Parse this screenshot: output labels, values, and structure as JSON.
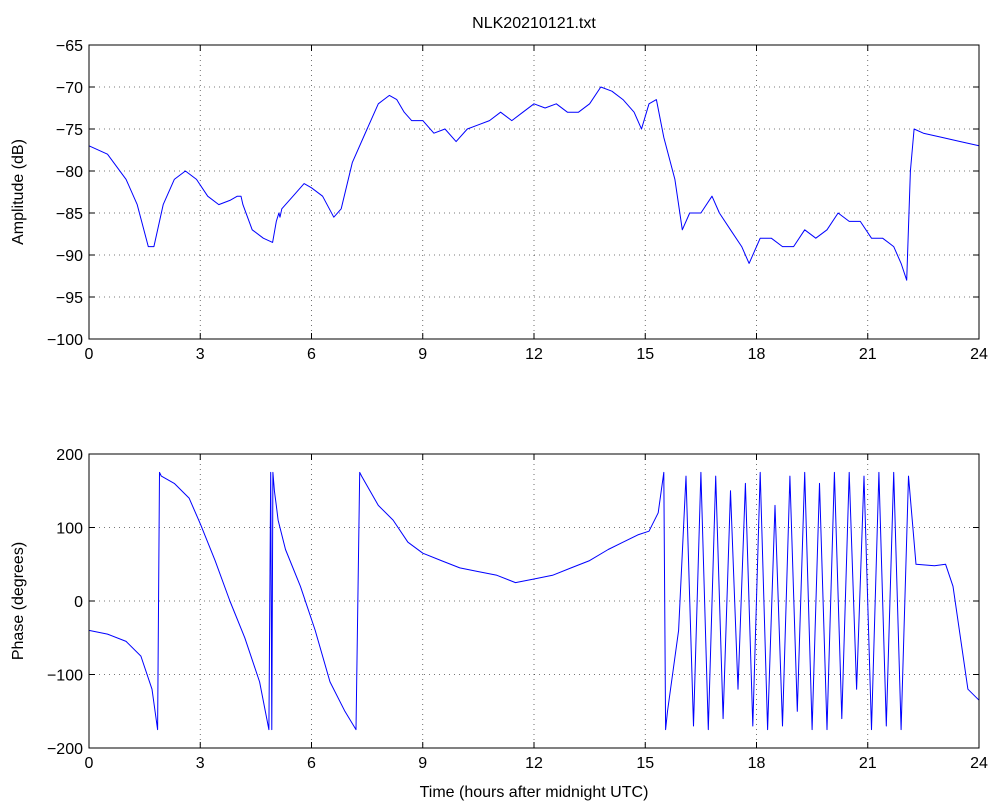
{
  "chart_data": [
    {
      "type": "line",
      "title": "NLK20210121.txt",
      "xlabel": "",
      "ylabel": "Amplitude (dB)",
      "xlim": [
        0,
        24
      ],
      "ylim": [
        -100,
        -65
      ],
      "xticks": [
        0,
        3,
        6,
        9,
        12,
        15,
        18,
        21,
        24
      ],
      "yticks": [
        -65,
        -70,
        -75,
        -80,
        -85,
        -90,
        -95,
        -100
      ],
      "grid": true,
      "series_color": "#0000ff",
      "series": [
        {
          "x": [
            0,
            0.5,
            1.0,
            1.3,
            1.6,
            1.75,
            2.0,
            2.3,
            2.6,
            2.9,
            3.2,
            3.5,
            3.8,
            4.0,
            4.1,
            4.15,
            4.4,
            4.7,
            4.95,
            5.05,
            5.12,
            5.15,
            5.2,
            5.5,
            5.8,
            6.0,
            6.3,
            6.6,
            6.8,
            7.1,
            7.5,
            7.8,
            8.1,
            8.3,
            8.5,
            8.7,
            9.0,
            9.3,
            9.6,
            9.9,
            10.2,
            10.5,
            10.8,
            11.1,
            11.4,
            11.7,
            12.0,
            12.3,
            12.6,
            12.9,
            13.2,
            13.5,
            13.8,
            14.1,
            14.4,
            14.7,
            14.9,
            15.1,
            15.3,
            15.5,
            15.8,
            16.0,
            16.2,
            16.5,
            16.8,
            17.0,
            17.3,
            17.6,
            17.8,
            18.1,
            18.4,
            18.7,
            19.0,
            19.3,
            19.6,
            19.9,
            20.2,
            20.5,
            20.8,
            21.1,
            21.4,
            21.7,
            21.9,
            22.05,
            22.15,
            22.25,
            22.5,
            23.0,
            23.5,
            24.0
          ],
          "y": [
            -77,
            -78,
            -81,
            -84,
            -89,
            -89,
            -84,
            -81,
            -80,
            -81,
            -83,
            -84,
            -83.5,
            -83,
            -83,
            -84,
            -87,
            -88,
            -88.5,
            -86,
            -85,
            -85.5,
            -84.5,
            -83,
            -81.5,
            -82,
            -83,
            -85.5,
            -84.5,
            -79,
            -75,
            -72,
            -71,
            -71.5,
            -73,
            -74,
            -74,
            -75.5,
            -75,
            -76.5,
            -75,
            -74.5,
            -74,
            -73,
            -74,
            -73,
            -72,
            -72.5,
            -72,
            -73,
            -73,
            -72,
            -70,
            -70.5,
            -71.5,
            -73,
            -75,
            -72,
            -71.5,
            -76,
            -81,
            -87,
            -85,
            -85,
            -83,
            -85,
            -87,
            -89,
            -91,
            -88,
            -88,
            -89,
            -89,
            -87,
            -88,
            -87,
            -85,
            -86,
            -86,
            -88,
            -88,
            -89,
            -91,
            -93,
            -80,
            -75,
            -75.5,
            -76,
            -76.5,
            -77
          ]
        }
      ]
    },
    {
      "type": "line",
      "title": "",
      "xlabel": "Time (hours after midnight UTC)",
      "ylabel": "Phase (degrees)",
      "xlim": [
        0,
        24
      ],
      "ylim": [
        -200,
        200
      ],
      "xticks": [
        0,
        3,
        6,
        9,
        12,
        15,
        18,
        21,
        24
      ],
      "yticks": [
        200,
        100,
        0,
        -100,
        -200
      ],
      "grid": true,
      "series_color": "#0000ff",
      "series": [
        {
          "x": [
            0,
            0.5,
            1.0,
            1.4,
            1.7,
            1.85,
            1.9,
            1.95,
            2.3,
            2.7,
            3.0,
            3.4,
            3.8,
            4.2,
            4.6,
            4.85,
            4.9,
            4.93,
            4.96,
            5.0,
            5.05,
            5.1,
            5.3,
            5.7,
            6.1,
            6.5,
            6.9,
            7.2,
            7.3,
            7.35,
            7.8,
            8.2,
            8.6,
            9.0,
            9.5,
            10.0,
            10.5,
            11.0,
            11.5,
            12.0,
            12.5,
            13.0,
            13.5,
            14.0,
            14.4,
            14.8,
            15.1,
            15.35,
            15.5,
            15.55,
            15.6,
            15.9,
            16.1,
            16.3,
            16.5,
            16.7,
            16.9,
            17.1,
            17.3,
            17.5,
            17.7,
            17.9,
            18.1,
            18.3,
            18.5,
            18.7,
            18.9,
            19.1,
            19.3,
            19.5,
            19.7,
            19.9,
            20.1,
            20.3,
            20.5,
            20.7,
            20.9,
            21.1,
            21.3,
            21.5,
            21.7,
            21.9,
            22.1,
            22.3,
            22.8,
            23.1,
            23.3,
            23.7,
            24.0
          ],
          "y": [
            -40,
            -45,
            -55,
            -75,
            -120,
            -175,
            175,
            170,
            160,
            140,
            105,
            55,
            0,
            -50,
            -110,
            -175,
            175,
            -175,
            175,
            150,
            130,
            110,
            70,
            20,
            -40,
            -110,
            -150,
            -175,
            175,
            170,
            130,
            110,
            80,
            65,
            55,
            45,
            40,
            35,
            25,
            30,
            35,
            45,
            55,
            70,
            80,
            90,
            95,
            120,
            175,
            -175,
            -150,
            -40,
            170,
            -170,
            175,
            -175,
            170,
            -160,
            150,
            -120,
            160,
            -170,
            175,
            -175,
            130,
            -170,
            170,
            -150,
            175,
            -175,
            160,
            -175,
            175,
            -160,
            175,
            -120,
            170,
            -175,
            175,
            -170,
            175,
            -175,
            170,
            50,
            48,
            50,
            20,
            -120,
            -135
          ]
        }
      ]
    }
  ]
}
